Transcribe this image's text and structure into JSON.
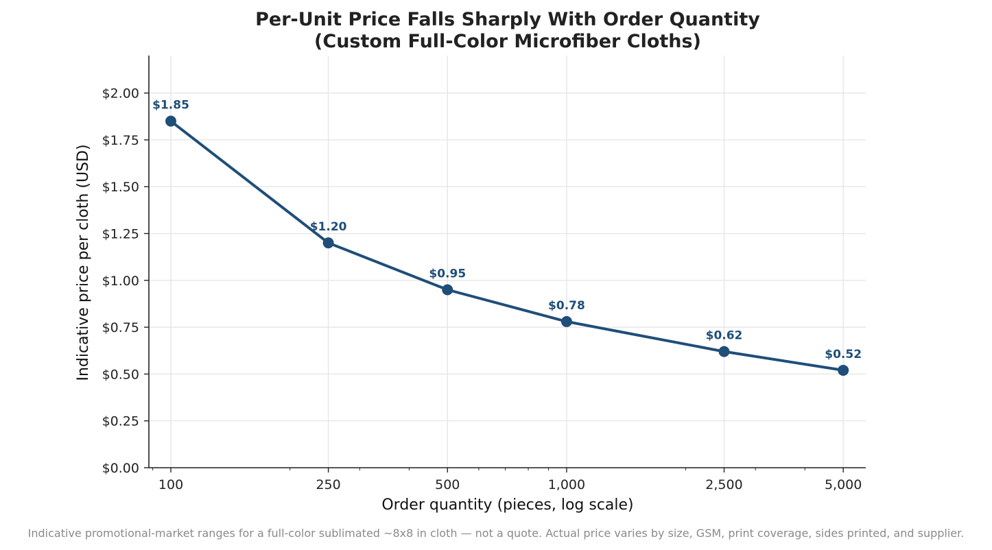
{
  "chart_data": {
    "type": "line",
    "title": "Per-Unit Price Falls Sharply With Order Quantity",
    "subtitle": "(Custom Full-Color Microfiber Cloths)",
    "xlabel": "Order quantity (pieces, log scale)",
    "ylabel": "Indicative price per cloth (USD)",
    "x_scale": "log",
    "x": [
      100,
      250,
      500,
      1000,
      2500,
      5000
    ],
    "x_tick_labels": [
      "100",
      "250",
      "500",
      "1,000",
      "2,500",
      "5,000"
    ],
    "values": [
      1.85,
      1.2,
      0.95,
      0.78,
      0.62,
      0.52
    ],
    "data_labels": [
      "$1.85",
      "$1.20",
      "$0.95",
      "$0.78",
      "$0.62",
      "$0.52"
    ],
    "xlim": [
      88,
      5700
    ],
    "ylim": [
      0,
      2.2
    ],
    "y_ticks": [
      0,
      0.25,
      0.5,
      0.75,
      1.0,
      1.25,
      1.5,
      1.75,
      2.0
    ],
    "y_tick_labels": [
      "$0.00",
      "$0.25",
      "$0.50",
      "$0.75",
      "$1.00",
      "$1.25",
      "$1.50",
      "$1.75",
      "$2.00"
    ],
    "grid": true,
    "line_color": "#1f4e79",
    "footnote": "Indicative promotional-market ranges for a full-color sublimated ~8x8 in cloth — not a quote. Actual price varies by size, GSM, print coverage, sides printed, and supplier."
  }
}
